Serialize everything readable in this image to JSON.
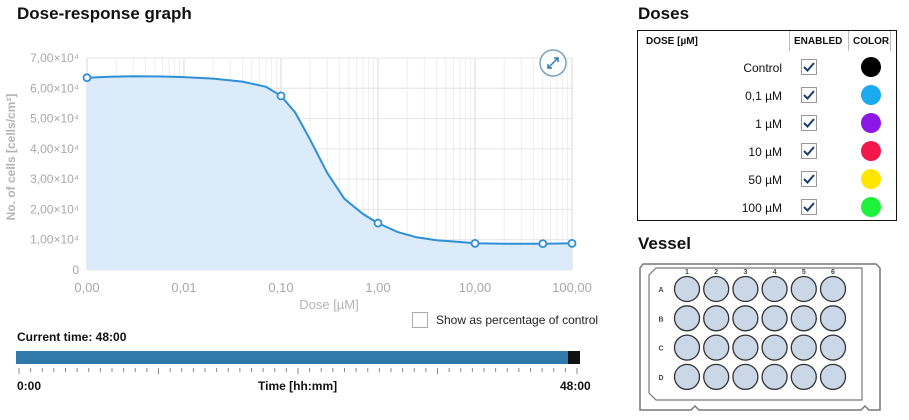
{
  "graph": {
    "title": "Dose-response graph",
    "expand_icon": "expand-arrows-icon"
  },
  "chart_data": {
    "type": "area",
    "xscale": "log",
    "x_tick_labels": [
      "0,00",
      "0,01",
      "0,10",
      "1,00",
      "10,00",
      "100,00"
    ],
    "y_tick_labels": [
      "0",
      "1,00×10⁴",
      "2,00×10⁴",
      "3,00×10⁴",
      "4,00×10⁴",
      "5,00×10⁴",
      "6,00×10⁴",
      "7,00×10⁴"
    ],
    "xlabel": "Dose [µM]",
    "ylabel": "No. of cells [cells/cm²]",
    "ylim": [
      0,
      70000
    ],
    "points": [
      {
        "dose": 0.001,
        "value": 63500
      },
      {
        "dose": 0.1,
        "value": 57500
      },
      {
        "dose": 1,
        "value": 15500
      },
      {
        "dose": 10,
        "value": 8800
      },
      {
        "dose": 50,
        "value": 8700
      },
      {
        "dose": 100,
        "value": 8800
      }
    ],
    "curve": [
      [
        0.001,
        63500
      ],
      [
        0.0017,
        63800
      ],
      [
        0.003,
        64000
      ],
      [
        0.006,
        63900
      ],
      [
        0.01,
        63700
      ],
      [
        0.02,
        63200
      ],
      [
        0.04,
        62200
      ],
      [
        0.07,
        60500
      ],
      [
        0.1,
        57500
      ],
      [
        0.14,
        52000
      ],
      [
        0.2,
        43000
      ],
      [
        0.3,
        32000
      ],
      [
        0.45,
        23500
      ],
      [
        0.7,
        18500
      ],
      [
        1,
        15500
      ],
      [
        1.6,
        12500
      ],
      [
        2.5,
        10800
      ],
      [
        4,
        9800
      ],
      [
        6.5,
        9300
      ],
      [
        10,
        8800
      ],
      [
        20,
        8650
      ],
      [
        35,
        8650
      ],
      [
        50,
        8700
      ],
      [
        75,
        8750
      ],
      [
        100,
        8800
      ]
    ],
    "line_color": "#2e8fd6",
    "fill_color": "#dcebfa",
    "grid": true
  },
  "percent_option": {
    "label": "Show as percentage of control",
    "checked": false
  },
  "time": {
    "current_label": "Current time: 48:00",
    "start": "0:00",
    "axis_label": "Time [hh:mm]",
    "end": "48:00",
    "progress": 0.98
  },
  "doses": {
    "title": "Doses",
    "col_dose": "DOSE [µM]",
    "col_enabled": "ENABLED",
    "col_color": "COLOR",
    "rows": [
      {
        "label": "Control",
        "enabled": true,
        "color": "#000000"
      },
      {
        "label": "0,1 µM",
        "enabled": true,
        "color": "#1aaaf0"
      },
      {
        "label": "1 µM",
        "enabled": true,
        "color": "#8b16e6"
      },
      {
        "label": "10 µM",
        "enabled": true,
        "color": "#f2184a"
      },
      {
        "label": "50 µM",
        "enabled": true,
        "color": "#ffe600"
      },
      {
        "label": "100 µM",
        "enabled": true,
        "color": "#1ff23a"
      }
    ]
  },
  "vessel": {
    "title": "Vessel",
    "columns": [
      "1",
      "2",
      "3",
      "4",
      "5",
      "6"
    ],
    "rows": [
      "A",
      "B",
      "C",
      "D"
    ],
    "well_color": "#c9d7e6"
  }
}
